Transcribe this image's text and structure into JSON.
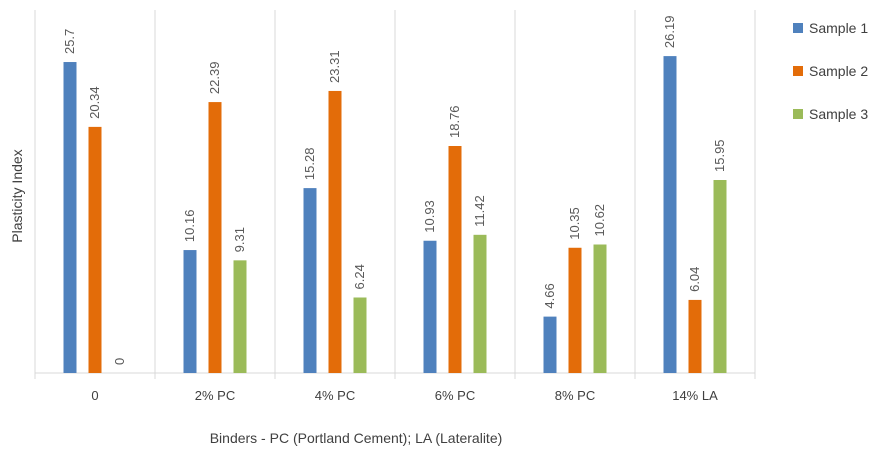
{
  "chart_data": {
    "type": "bar",
    "categories": [
      "0",
      "2% PC",
      "4% PC",
      "6% PC",
      "8% PC",
      "14% LA"
    ],
    "series": [
      {
        "name": "Sample 1",
        "color": "#4F81BD",
        "values": [
          25.7,
          10.16,
          15.28,
          10.93,
          4.66,
          26.19
        ]
      },
      {
        "name": "Sample 2",
        "color": "#E36C09",
        "values": [
          20.34,
          22.39,
          23.31,
          18.76,
          10.35,
          6.04
        ]
      },
      {
        "name": "Sample 3",
        "color": "#9BBB59",
        "values": [
          0,
          9.31,
          6.24,
          11.42,
          10.62,
          15.95
        ]
      }
    ],
    "data_labels": [
      [
        "25.7",
        "10.16",
        "15.28",
        "10.93",
        "4.66",
        "26.19"
      ],
      [
        "20.34",
        "22.39",
        "23.31",
        "18.76",
        "10.35",
        "6.04"
      ],
      [
        "0",
        "9.31",
        "6.24",
        "11.42",
        "10.62",
        "15.95"
      ]
    ],
    "xlabel": "Binders - PC (Portland Cement); LA (Lateralite)",
    "ylabel": "Plasticity Index",
    "ylim": [
      0,
      30
    ],
    "grid": "vertical category separators",
    "legend": "right"
  }
}
